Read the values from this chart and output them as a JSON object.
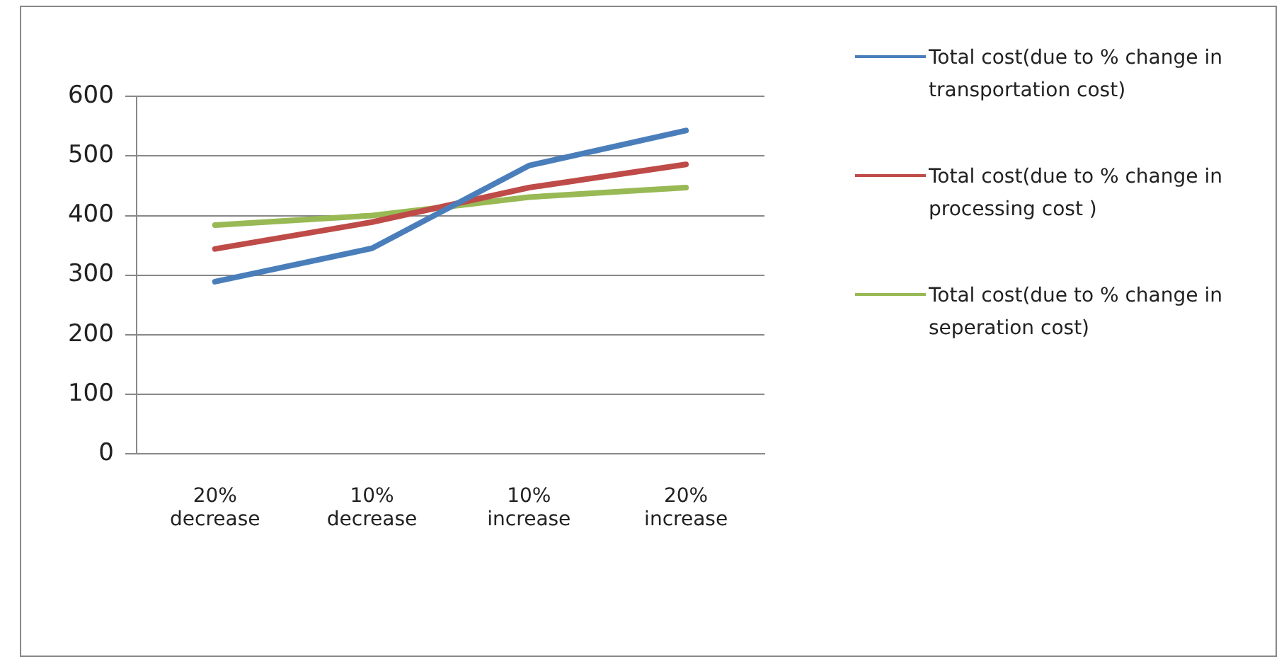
{
  "chart_data": {
    "type": "line",
    "categories": [
      "20% decrease",
      "10% decrease",
      "10% increase",
      "20% increase"
    ],
    "series": [
      {
        "name": "Total cost(due to % change in transportation cost)",
        "color": "#4a7ebb",
        "values": [
          289,
          345,
          484,
          543
        ]
      },
      {
        "name": "Total cost(due to % change in processing cost )",
        "color": "#be4b48",
        "values": [
          344,
          389,
          447,
          486
        ]
      },
      {
        "name": "Total cost(due to % change in seperation cost)",
        "color": "#98b954",
        "values": [
          384,
          400,
          431,
          447
        ]
      }
    ],
    "ylim": [
      0,
      600
    ],
    "yticks": [
      0,
      100,
      200,
      300,
      400,
      500,
      600
    ],
    "grid": "y",
    "legend": "right",
    "marker": "none",
    "line_style": "solid"
  }
}
